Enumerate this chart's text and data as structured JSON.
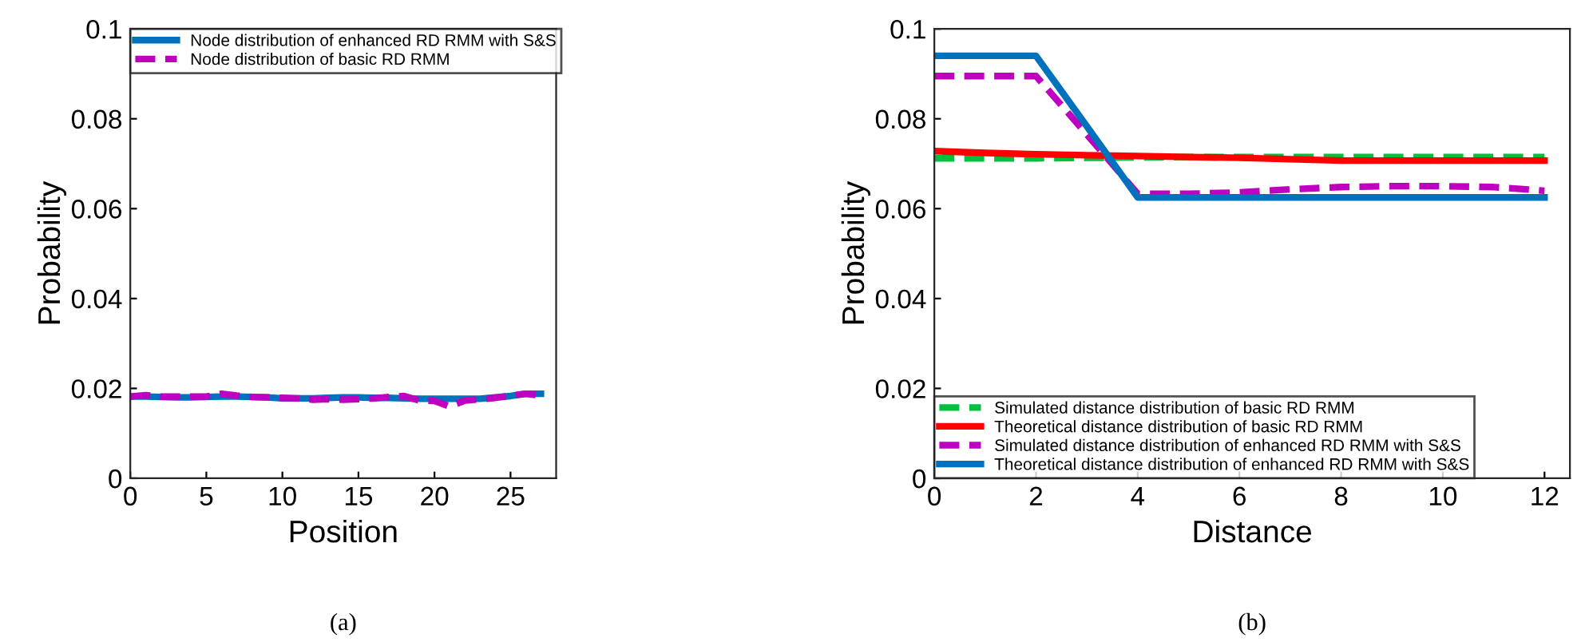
{
  "chart_data": [
    {
      "type": "line",
      "xlabel": "Position",
      "ylabel": "Probability",
      "annotations": [
        "(a)"
      ],
      "xlim": [
        0,
        28
      ],
      "xticks": [
        0,
        5,
        10,
        15,
        20,
        25
      ],
      "ylim": [
        0,
        0.1
      ],
      "yticks": [
        0,
        0.02,
        0.04,
        0.06,
        0.08,
        {
          "value": 0.1,
          "label": "0.1"
        }
      ],
      "grid": false,
      "legend": "top left",
      "x": [
        0,
        1,
        2,
        3,
        4,
        5,
        6,
        7,
        8,
        9,
        10,
        11,
        12,
        13,
        14,
        15,
        16,
        17,
        18,
        19,
        20,
        21,
        22,
        23,
        24,
        25,
        26,
        27
      ],
      "series": [
        {
          "name": "Node distribution of enhanced RD RMM with S&S",
          "color": "#0072bd",
          "line_style": "solid",
          "values": [
            0.0182,
            0.0182,
            0.0181,
            0.018,
            0.018,
            0.0181,
            0.0182,
            0.0182,
            0.0181,
            0.018,
            0.0178,
            0.0178,
            0.0178,
            0.0179,
            0.018,
            0.018,
            0.0179,
            0.0179,
            0.0178,
            0.0177,
            0.0177,
            0.0177,
            0.0177,
            0.0177,
            0.018,
            0.0183,
            0.0188,
            0.0188
          ]
        },
        {
          "name": "Node distribution of basic RD RMM",
          "color": "#c000c0",
          "line_style": "dashed",
          "values": [
            0.0182,
            0.0185,
            0.0182,
            0.0182,
            0.0182,
            0.0182,
            0.0188,
            0.0184,
            0.0181,
            0.018,
            0.0179,
            0.0178,
            0.0175,
            0.0176,
            0.0175,
            0.0176,
            0.0178,
            0.0181,
            0.0183,
            0.0173,
            0.0172,
            0.016,
            0.0173,
            0.0176,
            0.0179,
            0.0184,
            0.0188,
            0.0184
          ]
        }
      ]
    },
    {
      "type": "line",
      "xlabel": "Distance",
      "ylabel": "Probability",
      "annotations": [
        "(b)"
      ],
      "xlim": [
        0,
        12.5
      ],
      "xticks": [
        0,
        2,
        4,
        6,
        8,
        10,
        12
      ],
      "ylim": [
        0,
        0.1
      ],
      "yticks": [
        0,
        0.02,
        0.04,
        0.06,
        0.08,
        {
          "value": 0.1,
          "label": "0.1"
        }
      ],
      "grid": false,
      "legend": "bottom left",
      "x": [
        0,
        1,
        2,
        3,
        4,
        5,
        6,
        7,
        8,
        9,
        10,
        11,
        12
      ],
      "series": [
        {
          "name": "Simulated distance distribution of basic RD RMM",
          "color": "#00c040",
          "line_style": "dashed",
          "values": [
            0.0712,
            0.0712,
            0.0712,
            0.0713,
            0.0714,
            0.0715,
            0.0715,
            0.0715,
            0.0715,
            0.0715,
            0.0715,
            0.0715,
            0.0715
          ]
        },
        {
          "name": "Theoretical distance distribution of basic RD RMM",
          "color": "#ff0000",
          "line_style": "solid",
          "values": [
            0.0728,
            0.0724,
            0.0721,
            0.0719,
            0.0717,
            0.0715,
            0.0713,
            0.071,
            0.0707,
            0.0707,
            0.0707,
            0.0707,
            0.0707
          ]
        },
        {
          "name": "Simulated distance distribution of enhanced RD RMM with S&S",
          "color": "#c000c0",
          "line_style": "dashed",
          "values": [
            0.0895,
            0.0895,
            0.0895,
            0.0765,
            0.0633,
            0.0633,
            0.0636,
            0.0643,
            0.0648,
            0.065,
            0.065,
            0.0648,
            0.064
          ]
        },
        {
          "name": "Theoretical distance distribution of enhanced RD RMM with S&S",
          "color": "#0072bd",
          "line_style": "solid",
          "values": [
            0.094,
            0.094,
            0.094,
            0.0783,
            0.0625,
            0.0625,
            0.0625,
            0.0625,
            0.0625,
            0.0625,
            0.0625,
            0.0625,
            0.0625
          ]
        }
      ]
    }
  ]
}
